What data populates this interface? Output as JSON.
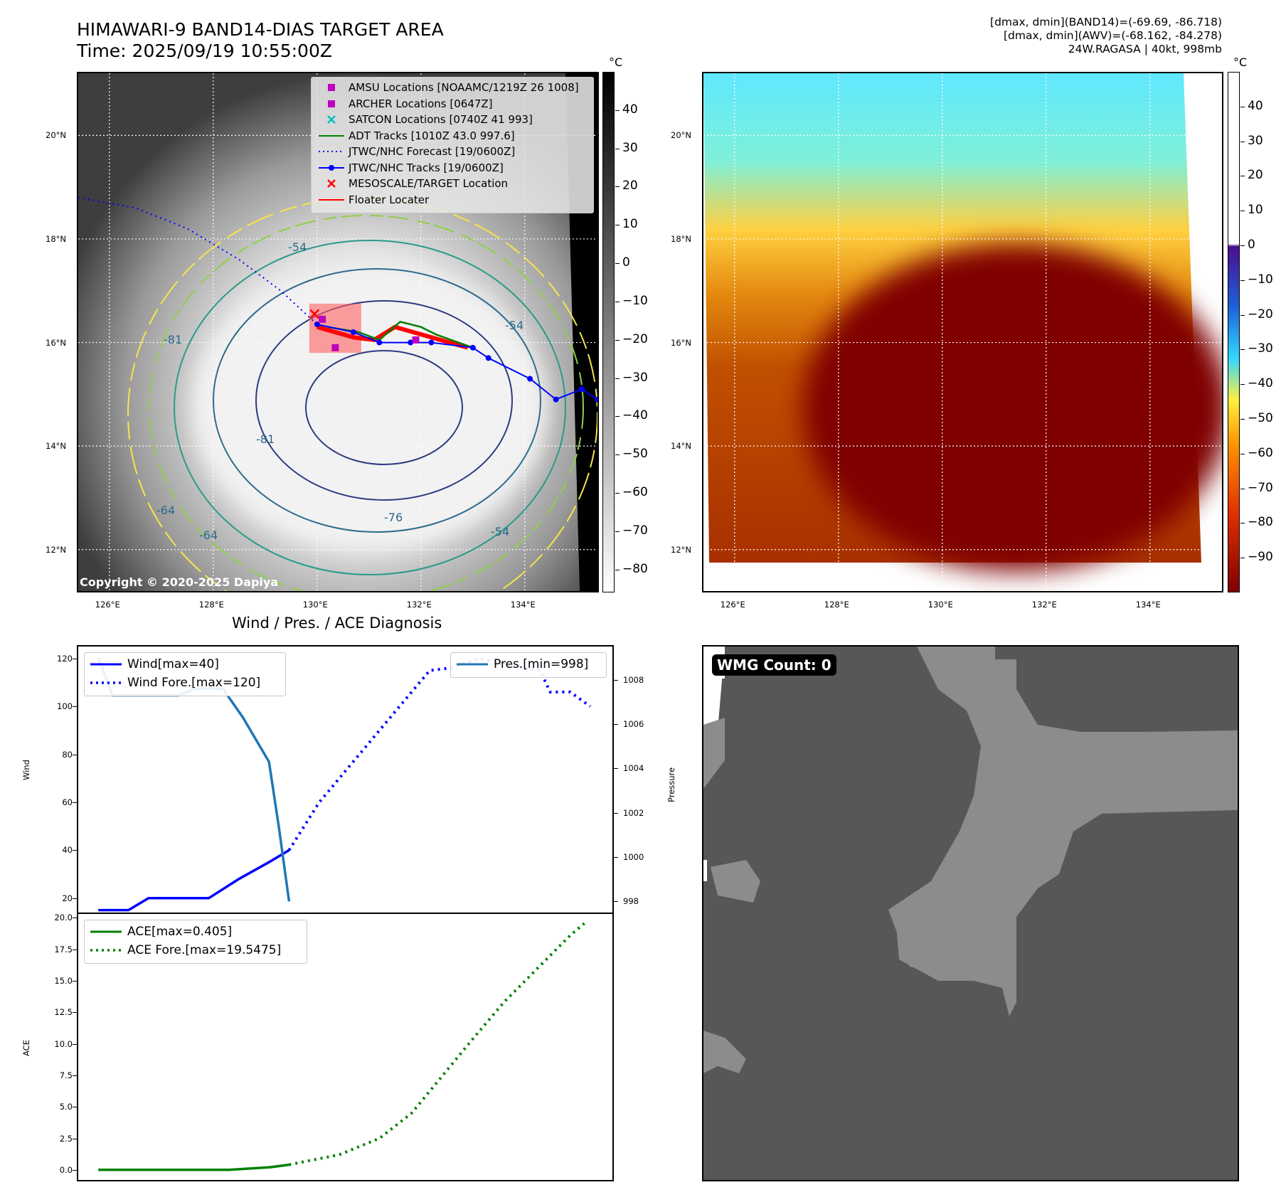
{
  "header": {
    "title_line1": "HIMAWARI-9 BAND14-DIAS TARGET AREA",
    "title_line2": "Time: 2025/09/19 10:55:00Z",
    "stat_line1": "[dmax, dmin](BAND14)=(-69.69, -86.718)",
    "stat_line2": "[dmax, dmin](AWV)=(-68.162, -84.278)",
    "stat_line3": "24W.RAGASA | 40kt, 998mb"
  },
  "map_axes": {
    "lat_labels": [
      "20°N",
      "18°N",
      "16°N",
      "14°N",
      "12°N"
    ],
    "lon_labels": [
      "126°E",
      "128°E",
      "130°E",
      "132°E",
      "134°E"
    ],
    "lat_values": [
      20,
      18,
      16,
      14,
      12
    ],
    "lon_values": [
      126,
      128,
      130,
      132,
      134
    ],
    "lat_range": [
      11.2,
      21.2
    ],
    "lon_range": [
      125.4,
      135.4
    ]
  },
  "left_map": {
    "copyright": "Copyright © 2020-2025 Dapiya",
    "colorbar_unit": "°C",
    "colorbar_ticks": [
      "40",
      "30",
      "20",
      "10",
      "0",
      "−10",
      "−20",
      "−30",
      "−40",
      "−50",
      "−60",
      "−70",
      "−80"
    ],
    "colorbar_range": [
      -86,
      50
    ],
    "contour_labels": [
      "-54",
      "-81",
      "-81",
      "-64",
      "-64",
      "-76",
      "-54",
      "-54"
    ],
    "legend": [
      {
        "label": "AMSU Locations [NOAAMC/1219Z 26 1008]",
        "symbol": "square",
        "color": "#bf00bf"
      },
      {
        "label": "ARCHER Locations [0647Z]",
        "symbol": "square",
        "color": "#bf00bf"
      },
      {
        "label": "SATCON Locations [0740Z 41 993]",
        "symbol": "x",
        "color": "#00bfbf"
      },
      {
        "label": "ADT Tracks [1010Z 43.0 997.6]",
        "symbol": "line",
        "color": "#008000"
      },
      {
        "label": "JTWC/NHC Forecast [19/0600Z]",
        "symbol": "dotted",
        "color": "#0000ff"
      },
      {
        "label": "JTWC/NHC Tracks [19/0600Z]",
        "symbol": "line-dot",
        "color": "#0000ff"
      },
      {
        "label": "MESOSCALE/TARGET Location",
        "symbol": "x",
        "color": "#ff0000"
      },
      {
        "label": "Floater Locater",
        "symbol": "line",
        "color": "#ff0000"
      }
    ],
    "jtwc_track": [
      [
        130.0,
        16.35
      ],
      [
        130.7,
        16.2
      ],
      [
        131.2,
        16.0
      ],
      [
        131.8,
        16.0
      ],
      [
        132.2,
        16.0
      ],
      [
        133.0,
        15.9
      ],
      [
        133.3,
        15.7
      ],
      [
        134.1,
        15.3
      ],
      [
        134.6,
        14.9
      ],
      [
        135.1,
        15.1
      ],
      [
        135.4,
        14.9
      ]
    ],
    "jtwc_forecast": [
      [
        125.4,
        18.8
      ],
      [
        126.5,
        18.6
      ],
      [
        127.5,
        18.2
      ],
      [
        128.5,
        17.6
      ],
      [
        129.3,
        17.0
      ],
      [
        130.0,
        16.35
      ]
    ],
    "adt_track": [
      [
        130.2,
        16.3
      ],
      [
        130.8,
        16.2
      ],
      [
        131.2,
        16.05
      ],
      [
        131.6,
        16.4
      ],
      [
        132.0,
        16.3
      ],
      [
        132.3,
        16.15
      ],
      [
        133.0,
        15.9
      ]
    ],
    "floater_track": [
      [
        130.0,
        16.3
      ],
      [
        130.7,
        16.1
      ],
      [
        131.1,
        16.05
      ],
      [
        131.5,
        16.3
      ],
      [
        132.2,
        16.1
      ],
      [
        132.9,
        15.9
      ]
    ],
    "amsu_points": [
      [
        130.1,
        16.45
      ],
      [
        130.35,
        15.9
      ],
      [
        131.9,
        16.05
      ]
    ],
    "mesoscale_point": [
      129.95,
      16.55
    ],
    "target_box": [
      [
        129.85,
        15.8
      ],
      [
        130.85,
        16.75
      ]
    ]
  },
  "right_map": {
    "colorbar_unit": "°C",
    "colorbar_ticks": [
      "40",
      "30",
      "20",
      "10",
      "0",
      "−10",
      "−20",
      "−30",
      "−40",
      "−50",
      "−60",
      "−70",
      "−80",
      "−90"
    ],
    "colorbar_range": [
      -100,
      50
    ]
  },
  "chart_data": [
    {
      "type": "line",
      "title": "Wind / Pres. / ACE Diagnosis",
      "ylabel": "Wind",
      "ylabel_right": "Pressure",
      "ylim": [
        14,
        125
      ],
      "ylim_right": [
        997.5,
        1009.5
      ],
      "xlim": [
        -0.5,
        12.8
      ],
      "yticks": [
        20,
        40,
        60,
        80,
        100,
        120
      ],
      "yticks_right": [
        998,
        1000,
        1002,
        1004,
        1006,
        1008
      ],
      "series": [
        {
          "name": "Wind[max=40]",
          "style": "solid",
          "color": "#0000ff",
          "axis": "left",
          "x": [
            0,
            0.75,
            1.25,
            2.75,
            3.5,
            4.25,
            4.75
          ],
          "values": [
            15,
            15,
            20,
            20,
            28,
            35,
            40
          ]
        },
        {
          "name": "Wind Fore.[max=120]",
          "style": "dotted",
          "color": "#0000ff",
          "axis": "left",
          "x": [
            4.75,
            5.5,
            6.25,
            7,
            7.75,
            8.25,
            8.75,
            9.5,
            10.25,
            11,
            11.25,
            11.75,
            12.25
          ],
          "values": [
            40,
            60,
            75,
            90,
            105,
            115,
            116,
            120,
            117,
            115,
            106,
            106,
            100
          ]
        },
        {
          "name": "Pres.[min=998]",
          "style": "solid",
          "color": "#1f77b4",
          "axis": "right",
          "x": [
            0,
            0.35,
            1,
            2,
            2.4,
            3.1,
            3.6,
            4.25,
            4.5,
            4.75
          ],
          "values": [
            1009,
            1007.3,
            1007.3,
            1007.3,
            1007.6,
            1007.6,
            1006.3,
            1004.3,
            1001.3,
            998
          ]
        }
      ],
      "legend_left": [
        "Wind[max=40]",
        "Wind Fore.[max=120]"
      ],
      "legend_right": [
        "Pres.[min=998]"
      ]
    },
    {
      "type": "line",
      "ylabel": "ACE",
      "ylim": [
        -0.8,
        20.3
      ],
      "xlim": [
        -0.5,
        12.8
      ],
      "yticks": [
        0.0,
        2.5,
        5.0,
        7.5,
        10.0,
        12.5,
        15.0,
        17.5,
        20.0
      ],
      "series": [
        {
          "name": "ACE[max=0.405]",
          "style": "solid",
          "color": "#008000",
          "x": [
            0,
            1.5,
            2.5,
            3.25,
            4.25,
            4.75
          ],
          "values": [
            0,
            0,
            0,
            0,
            0.2,
            0.405
          ]
        },
        {
          "name": "ACE Fore.[max=19.5475]",
          "style": "dotted",
          "color": "#008000",
          "x": [
            4.75,
            6,
            7,
            7.8,
            8.5,
            9.3,
            10.1,
            11,
            11.75,
            12.1
          ],
          "values": [
            0.405,
            1.2,
            2.5,
            4.5,
            7.2,
            10.3,
            13.3,
            16.2,
            18.6,
            19.5475
          ]
        }
      ]
    }
  ],
  "wmg_panel": {
    "badge": "WMG Count: 0"
  }
}
